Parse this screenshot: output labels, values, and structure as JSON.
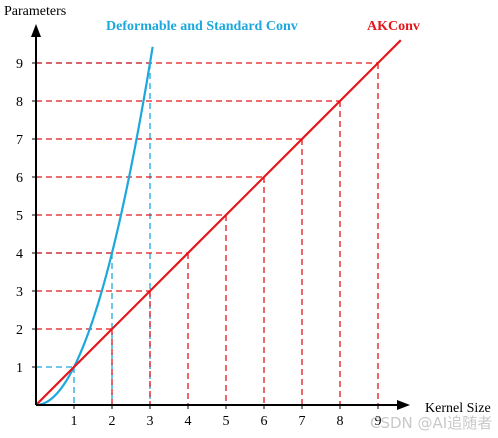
{
  "chart_data": {
    "type": "line",
    "xlabel": "Kernel Size",
    "ylabel": "Parameters",
    "x_ticks": [
      "1",
      "2",
      "3",
      "4",
      "5",
      "6",
      "7",
      "8",
      "9"
    ],
    "y_ticks": [
      "1",
      "2",
      "3",
      "4",
      "5",
      "6",
      "7",
      "8",
      "9"
    ],
    "xlim": [
      0,
      9.6
    ],
    "ylim": [
      0,
      9.6
    ],
    "grid": false,
    "series": [
      {
        "name": "Deformable and Standard Conv",
        "color": "#1ca8dd",
        "x": [
          1,
          2,
          3
        ],
        "y": [
          1,
          4,
          9
        ],
        "guides_at_x": [
          1,
          2,
          3
        ]
      },
      {
        "name": "AKConv",
        "color": "#e3171b",
        "x": [
          1,
          2,
          3,
          4,
          5,
          6,
          7,
          8,
          9
        ],
        "y": [
          1,
          2,
          3,
          4,
          5,
          6,
          7,
          8,
          9
        ],
        "guides_at_x": [
          2,
          3,
          4,
          5,
          6,
          7,
          8,
          9
        ]
      }
    ]
  },
  "watermark": "CSDN @AI追随者"
}
